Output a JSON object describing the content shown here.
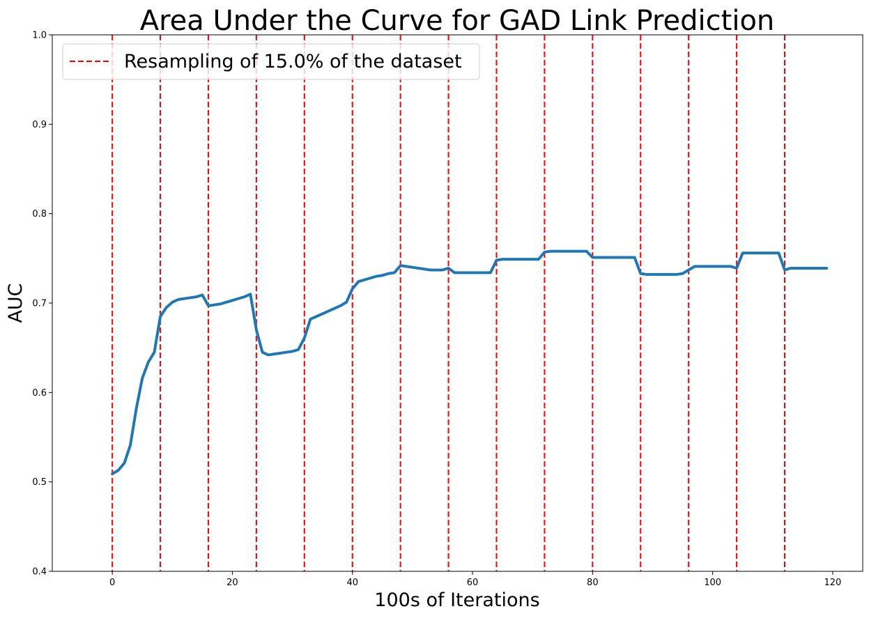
{
  "chart_data": {
    "type": "line",
    "title": "Area Under the Curve for GAD Link Prediction",
    "xlabel": "100s of Iterations",
    "ylabel": "AUC",
    "xlim": [
      -10,
      125
    ],
    "ylim": [
      0.4,
      1.0
    ],
    "x_ticks": [
      0,
      20,
      40,
      60,
      80,
      100,
      120
    ],
    "y_ticks": [
      0.4,
      0.5,
      0.6,
      0.7,
      0.8,
      0.9,
      1.0
    ],
    "x_tick_labels": [
      "0",
      "20",
      "40",
      "60",
      "80",
      "100",
      "120"
    ],
    "y_tick_labels": [
      "0.4",
      "0.5",
      "0.6",
      "0.7",
      "0.8",
      "0.9",
      "1.0"
    ],
    "grid": false,
    "legend": {
      "position": "upper-left",
      "entries": [
        {
          "label": "Resampling of 15.0% of the dataset",
          "style": "dashed",
          "color": "#ff0000"
        }
      ]
    },
    "vlines": {
      "color": "#ff0000",
      "style": "dashed",
      "x": [
        0,
        8,
        16,
        24,
        32,
        40,
        48,
        56,
        64,
        72,
        80,
        88,
        96,
        104,
        112
      ]
    },
    "series": [
      {
        "color": "#1f77b4",
        "x": [
          0,
          1,
          2,
          3,
          4,
          5,
          6,
          7,
          8,
          9,
          10,
          11,
          12,
          13,
          14,
          15,
          16,
          17,
          18,
          19,
          20,
          21,
          22,
          23,
          24,
          25,
          26,
          27,
          28,
          29,
          30,
          31,
          32,
          33,
          34,
          35,
          36,
          37,
          38,
          39,
          40,
          41,
          42,
          43,
          44,
          45,
          46,
          47,
          48,
          49,
          50,
          51,
          52,
          53,
          54,
          55,
          56,
          57,
          58,
          59,
          60,
          61,
          62,
          63,
          64,
          65,
          66,
          67,
          68,
          69,
          70,
          71,
          72,
          73,
          74,
          75,
          76,
          77,
          78,
          79,
          80,
          81,
          82,
          83,
          84,
          85,
          86,
          87,
          88,
          89,
          90,
          91,
          92,
          93,
          94,
          95,
          96,
          97,
          98,
          99,
          100,
          101,
          102,
          103,
          104,
          105,
          106,
          107,
          108,
          109,
          110,
          111,
          112,
          113,
          114,
          115,
          116,
          117,
          118,
          119
        ],
        "y": [
          0.509,
          0.513,
          0.521,
          0.541,
          0.582,
          0.616,
          0.634,
          0.645,
          0.685,
          0.695,
          0.701,
          0.704,
          0.705,
          0.706,
          0.707,
          0.709,
          0.697,
          0.698,
          0.699,
          0.701,
          0.703,
          0.705,
          0.707,
          0.71,
          0.67,
          0.645,
          0.642,
          0.643,
          0.644,
          0.645,
          0.646,
          0.648,
          0.661,
          0.682,
          0.685,
          0.688,
          0.691,
          0.694,
          0.697,
          0.701,
          0.716,
          0.724,
          0.726,
          0.728,
          0.73,
          0.731,
          0.733,
          0.734,
          0.742,
          0.741,
          0.74,
          0.739,
          0.738,
          0.737,
          0.737,
          0.737,
          0.739,
          0.734,
          0.734,
          0.734,
          0.734,
          0.734,
          0.734,
          0.734,
          0.748,
          0.749,
          0.749,
          0.749,
          0.749,
          0.749,
          0.749,
          0.749,
          0.757,
          0.758,
          0.758,
          0.758,
          0.758,
          0.758,
          0.758,
          0.758,
          0.751,
          0.751,
          0.751,
          0.751,
          0.751,
          0.751,
          0.751,
          0.751,
          0.733,
          0.732,
          0.732,
          0.732,
          0.732,
          0.732,
          0.732,
          0.733,
          0.737,
          0.741,
          0.741,
          0.741,
          0.741,
          0.741,
          0.741,
          0.741,
          0.739,
          0.756,
          0.756,
          0.756,
          0.756,
          0.756,
          0.756,
          0.756,
          0.737,
          0.739,
          0.739,
          0.739,
          0.739,
          0.739,
          0.739,
          0.739
        ]
      }
    ]
  }
}
